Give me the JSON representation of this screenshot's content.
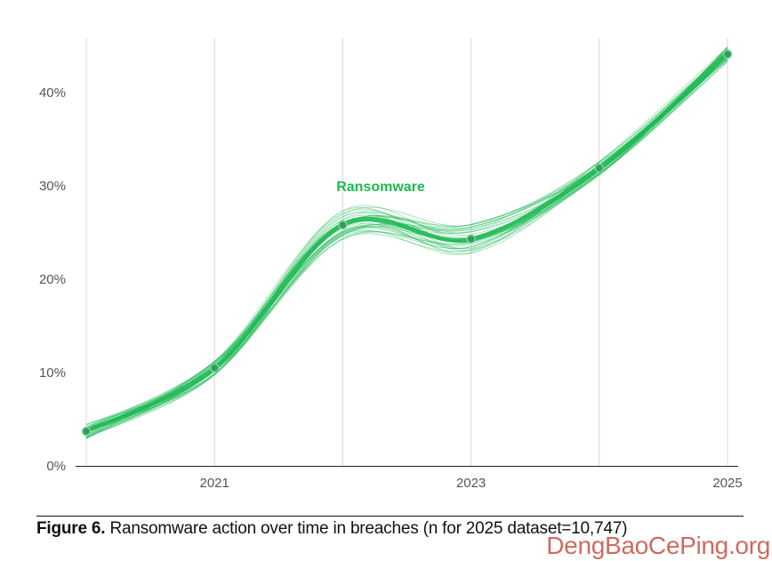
{
  "chart_data": {
    "type": "line",
    "title": "",
    "xlabel": "",
    "ylabel": "",
    "x": [
      2020,
      2021,
      2022,
      2023,
      2024,
      2025
    ],
    "x_tick_labels": [
      "2021",
      "2023",
      "2025"
    ],
    "x_tick_values": [
      2021,
      2023,
      2025
    ],
    "y_tick_labels": [
      "0%",
      "10%",
      "20%",
      "30%",
      "40%"
    ],
    "y_tick_values": [
      0,
      10,
      20,
      30,
      40
    ],
    "xlim": [
      2020,
      2025
    ],
    "ylim": [
      0,
      45
    ],
    "grid": "vertical",
    "series": [
      {
        "name": "Ransomware",
        "values": [
          3.7,
          10.5,
          25.8,
          24.3,
          31.9,
          44.1
        ],
        "color": "#1db954"
      }
    ],
    "uncertainty_band": "many faint bootstrap lines around the median line"
  },
  "caption": {
    "label": "Figure 6.",
    "text": " Ransomware action over time in breaches (n for 2025 dataset=10,747)"
  },
  "watermark": "DengBaoCePing.org",
  "colors": {
    "line": "#1db954",
    "point": "#2e9e5b",
    "grid": "#d9d9d9",
    "axis": "#222222"
  }
}
